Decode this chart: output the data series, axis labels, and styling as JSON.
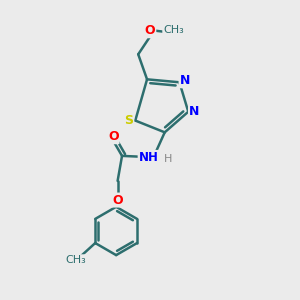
{
  "bg_color": "#ebebeb",
  "bond_color": "#2d6e6e",
  "atom_colors": {
    "O": "#ff0000",
    "N": "#0000ff",
    "S": "#cccc00",
    "C": "#2d6e6e",
    "H": "#808080"
  },
  "bond_width": 1.8,
  "figsize": [
    3.0,
    3.0
  ],
  "dpi": 100,
  "xlim": [
    0,
    10
  ],
  "ylim": [
    0,
    10
  ]
}
